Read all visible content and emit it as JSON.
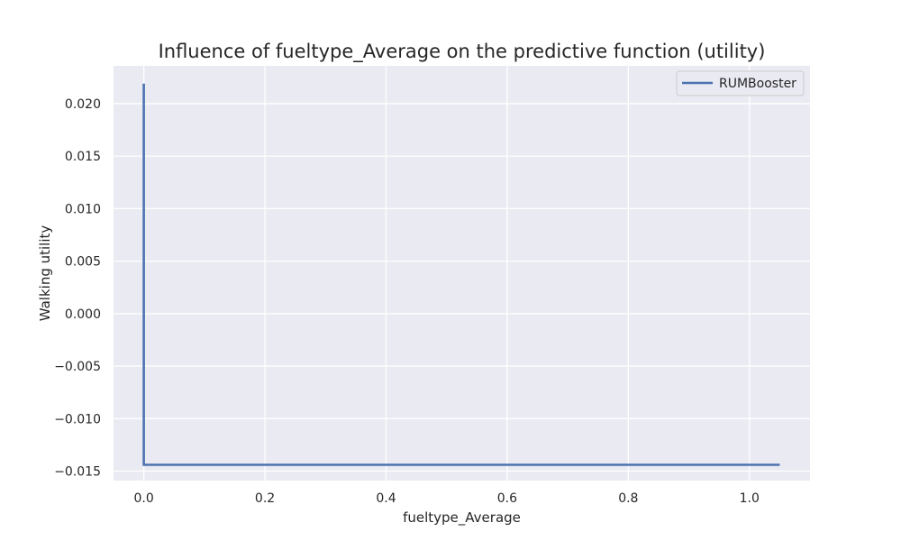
{
  "chart_data": {
    "type": "line",
    "title": "Influence of fueltype_Average on the predictive function (utility)",
    "xlabel": "fueltype_Average",
    "ylabel": "Walking utility",
    "xlim": [
      -0.05,
      1.1
    ],
    "ylim": [
      -0.0159,
      0.0236
    ],
    "xticks": [
      0.0,
      0.2,
      0.4,
      0.6,
      0.8,
      1.0
    ],
    "xtick_labels": [
      "0.0",
      "0.2",
      "0.4",
      "0.6",
      "0.8",
      "1.0"
    ],
    "yticks": [
      0.02,
      0.015,
      0.01,
      0.005,
      0.0,
      -0.005,
      -0.01,
      -0.015
    ],
    "ytick_labels": [
      "0.020",
      "0.015",
      "0.010",
      "0.005",
      "0.000",
      "−0.005",
      "−0.010",
      "−0.015"
    ],
    "grid": true,
    "legend_position": "top-right",
    "series": [
      {
        "name": "RUMBooster",
        "color": "#4c72b0",
        "x": [
          0.0,
          0.0,
          1.05
        ],
        "y": [
          0.0219,
          -0.0144,
          -0.0144
        ]
      }
    ]
  },
  "colors": {
    "axes_background": "#eaeaf2",
    "grid": "#ffffff",
    "text": "#262626"
  }
}
